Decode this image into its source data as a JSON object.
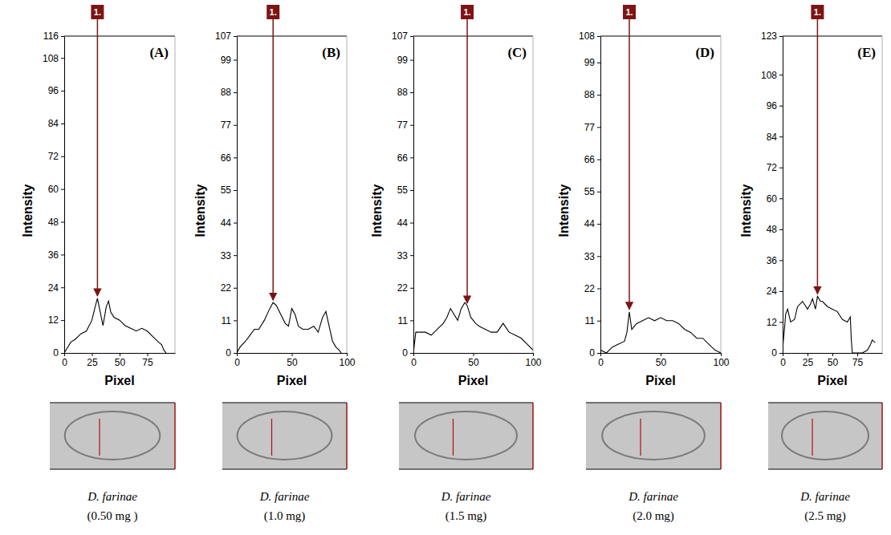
{
  "chart_data": [
    {
      "type": "line",
      "title": "(A)",
      "x_label": "Pixel",
      "y_label": "Intensity",
      "caption": "D. farinae",
      "subtitle": "(0.50 mg )",
      "color": "#000000",
      "x": [
        0,
        3,
        6,
        10,
        15,
        20,
        25,
        28,
        30,
        32,
        35,
        38,
        40,
        42,
        45,
        50,
        55,
        60,
        65,
        70,
        75,
        80,
        85,
        88,
        90,
        92
      ],
      "values": [
        0,
        2,
        4,
        5,
        7,
        8,
        12,
        17,
        20,
        16,
        10,
        17,
        19,
        15,
        13,
        12,
        10,
        9,
        8,
        9,
        8,
        6,
        4,
        3,
        1,
        0
      ],
      "xlim": [
        0,
        100
      ],
      "xticks": [
        0,
        25,
        50,
        75
      ],
      "ylim": [
        0,
        116
      ],
      "yticks": [
        0,
        12,
        24,
        36,
        48,
        60,
        72,
        84,
        96,
        108,
        116
      ],
      "annotations": [
        {
          "text": "1.",
          "x": 30,
          "y": 20
        }
      ]
    },
    {
      "type": "line",
      "title": "(B)",
      "x_label": "Pixel",
      "y_label": "Intensity",
      "caption": "D. farinae",
      "subtitle": "(1.0 mg)",
      "color": "#000000",
      "x": [
        0,
        3,
        8,
        12,
        16,
        20,
        25,
        30,
        33,
        36,
        40,
        44,
        47,
        50,
        53,
        56,
        60,
        65,
        70,
        74,
        78,
        81,
        84,
        87,
        90,
        93,
        95
      ],
      "values": [
        0,
        2,
        4,
        6,
        8,
        8,
        11,
        15,
        17,
        16,
        13,
        10,
        9,
        15,
        13,
        9,
        8,
        8,
        9,
        7,
        12,
        14,
        9,
        4,
        2,
        1,
        0
      ],
      "xlim": [
        0,
        100
      ],
      "xticks": [
        0,
        50,
        100
      ],
      "ylim": [
        0,
        107
      ],
      "yticks": [
        0,
        11,
        22,
        33,
        44,
        55,
        66,
        77,
        88,
        99,
        107
      ],
      "annotations": [
        {
          "text": "1.",
          "x": 33,
          "y": 17
        }
      ]
    },
    {
      "type": "line",
      "title": "(C)",
      "x_label": "Pixel",
      "y_label": "Intensity",
      "caption": "D. farinae",
      "subtitle": "(1.5 mg)",
      "color": "#000000",
      "x": [
        0,
        2,
        5,
        10,
        15,
        20,
        25,
        28,
        31,
        34,
        37,
        40,
        43,
        45,
        48,
        52,
        55,
        60,
        65,
        70,
        75,
        80,
        85,
        90,
        95,
        100
      ],
      "values": [
        0,
        7,
        7,
        7,
        6,
        8,
        10,
        12,
        15,
        13,
        11,
        15,
        17,
        16,
        12,
        10,
        9,
        8,
        7,
        7,
        10,
        7,
        6,
        5,
        3,
        1
      ],
      "xlim": [
        0,
        100
      ],
      "xticks": [
        0,
        50,
        100
      ],
      "ylim": [
        0,
        107
      ],
      "yticks": [
        0,
        11,
        22,
        33,
        44,
        55,
        66,
        77,
        88,
        99,
        107
      ],
      "annotations": [
        {
          "text": "1.",
          "x": 45,
          "y": 16
        }
      ]
    },
    {
      "type": "line",
      "title": "(D)",
      "x_label": "Pixel",
      "y_label": "Intensity",
      "caption": "D. farinae",
      "subtitle": "(2.0 mg)",
      "color": "#000000",
      "x": [
        0,
        5,
        10,
        15,
        20,
        22,
        24,
        26,
        28,
        30,
        35,
        40,
        45,
        50,
        55,
        60,
        65,
        70,
        75,
        80,
        85,
        90,
        95,
        100
      ],
      "values": [
        1,
        0,
        2,
        3,
        4,
        7,
        14,
        8,
        9,
        10,
        11,
        12,
        11,
        12,
        11,
        11,
        10,
        8,
        7,
        5,
        5,
        3,
        1,
        0
      ],
      "xlim": [
        0,
        100
      ],
      "xticks": [
        0,
        50,
        100
      ],
      "ylim": [
        0,
        108
      ],
      "yticks": [
        0,
        11,
        22,
        33,
        44,
        55,
        66,
        77,
        88,
        99,
        108
      ],
      "annotations": [
        {
          "text": "1.",
          "x": 24,
          "y": 14
        }
      ]
    },
    {
      "type": "line",
      "title": "(E)",
      "x_label": "Pixel",
      "y_label": "Intensity",
      "caption": "D. farinae",
      "subtitle": "(2.5 mg)",
      "color": "#000000",
      "x": [
        0,
        2,
        3,
        5,
        8,
        12,
        15,
        20,
        25,
        28,
        30,
        33,
        35,
        38,
        40,
        45,
        50,
        55,
        60,
        65,
        68,
        69,
        70,
        75,
        80,
        85,
        88,
        90,
        93
      ],
      "values": [
        2,
        10,
        15,
        17,
        12,
        13,
        18,
        20,
        17,
        19,
        21,
        17,
        22,
        20,
        20,
        18,
        17,
        16,
        13,
        12,
        14,
        5,
        0,
        0,
        0,
        1,
        3,
        5,
        4
      ],
      "xlim": [
        0,
        100
      ],
      "xticks": [
        0,
        25,
        50,
        75
      ],
      "ylim": [
        0,
        123
      ],
      "yticks": [
        0,
        12,
        24,
        36,
        48,
        60,
        72,
        84,
        96,
        108,
        123
      ],
      "annotations": [
        {
          "text": "1.",
          "x": 35,
          "y": 22
        }
      ]
    }
  ]
}
